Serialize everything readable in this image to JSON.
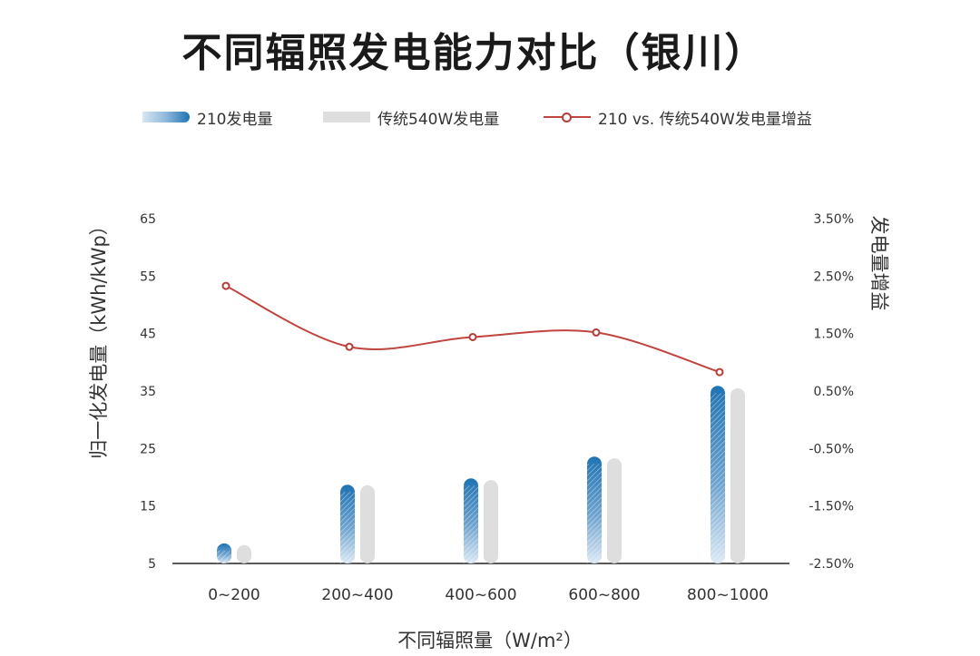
{
  "chart_data": {
    "type": "bar",
    "title": "不同辐照发电能力对比（银川）",
    "categories": [
      "0~200",
      "200~400",
      "400~600",
      "600~800",
      "800~1000"
    ],
    "xlabel": "不同辐照量（W/m²）",
    "ylabel": "归一化发电量（kWh/kWp）",
    "y2label": "发电量增益",
    "ylim": [
      5,
      65
    ],
    "yticks": [
      "65",
      "55",
      "45",
      "35",
      "25",
      "15",
      "5"
    ],
    "y2lim": [
      -2.5,
      3.5
    ],
    "y2ticks": [
      "3.50%",
      "2.50%",
      "1.50%",
      "0.50%",
      "-0.50%",
      "-1.50%",
      "-2.50%"
    ],
    "series": [
      {
        "name": "210发电量",
        "kind": "bar",
        "color": "#1f73b3",
        "values": [
          8.5,
          18.7,
          19.8,
          23.6,
          35.9
        ]
      },
      {
        "name": "传统540W发电量",
        "kind": "bar",
        "color": "#dedede",
        "values": [
          8.2,
          18.6,
          19.5,
          23.3,
          35.5
        ]
      },
      {
        "name": "210 vs. 传统540W发电量增益",
        "kind": "line",
        "axis": "right",
        "color": "#c0453e",
        "values": [
          2.33,
          1.27,
          1.44,
          1.52,
          0.83
        ]
      }
    ],
    "legend_position": "top",
    "grid": false
  }
}
